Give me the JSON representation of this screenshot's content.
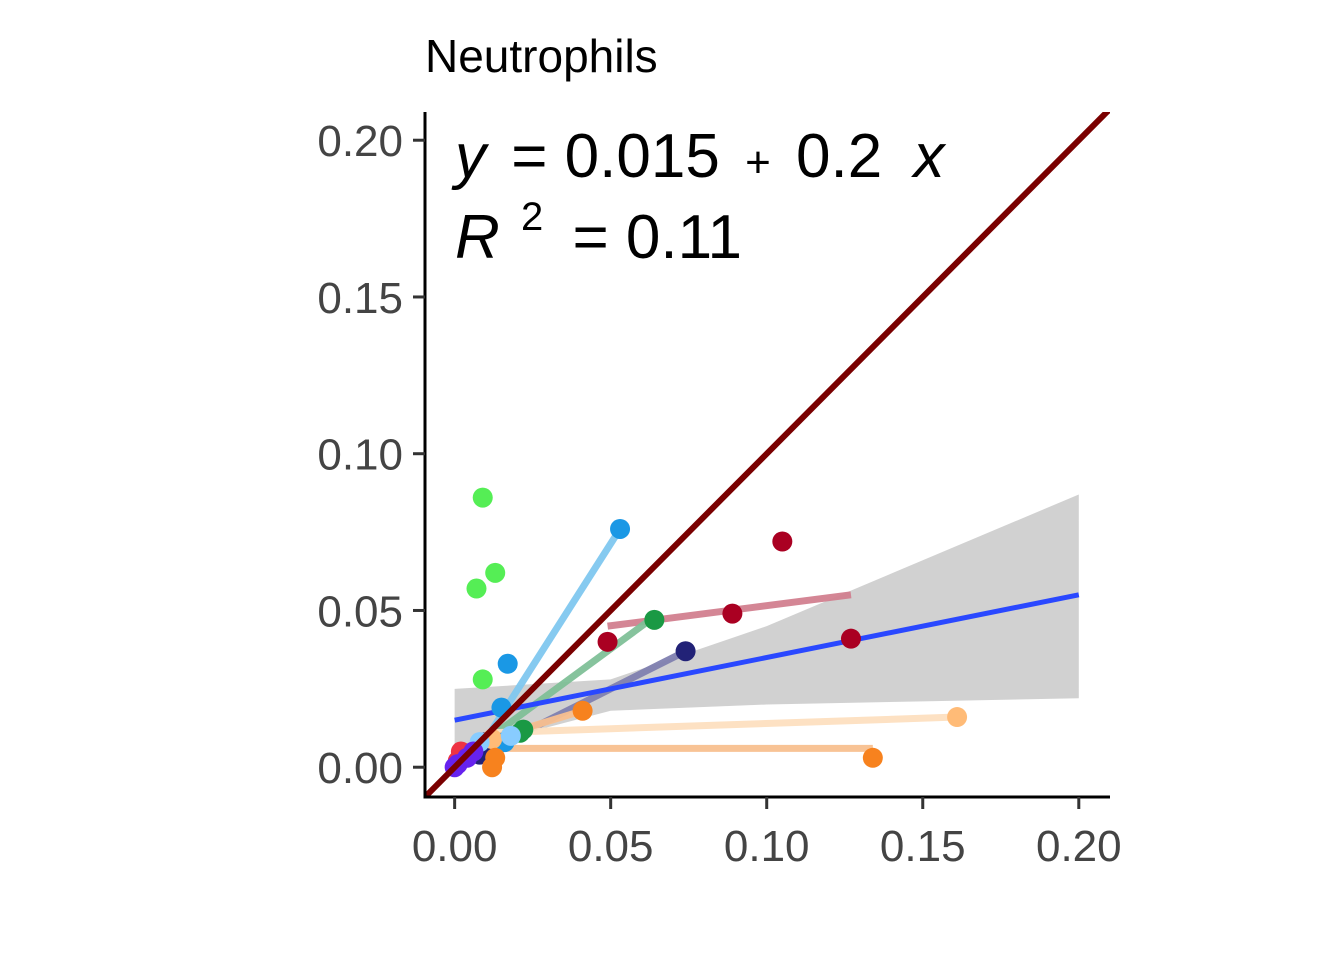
{
  "chart_data": {
    "type": "scatter",
    "title": "Neutrophils",
    "annotation": {
      "line1_y": "y",
      "line1_eq": "= 0.015",
      "line1_plus": "+",
      "line1_coef": "0.2",
      "line1_x": "x",
      "line2_r": "R",
      "line2_sup": "2",
      "line2_val": "= 0.11"
    },
    "xlim": [
      -0.0095,
      0.21
    ],
    "ylim": [
      -0.0095,
      0.209
    ],
    "x_ticks": [
      {
        "value": 0.0,
        "label": "0.00"
      },
      {
        "value": 0.05,
        "label": "0.05"
      },
      {
        "value": 0.1,
        "label": "0.10"
      },
      {
        "value": 0.15,
        "label": "0.15"
      },
      {
        "value": 0.2,
        "label": "0.20"
      }
    ],
    "y_ticks": [
      {
        "value": 0.0,
        "label": "0.00"
      },
      {
        "value": 0.05,
        "label": "0.05"
      },
      {
        "value": 0.1,
        "label": "0.10"
      },
      {
        "value": 0.15,
        "label": "0.15"
      },
      {
        "value": 0.2,
        "label": "0.20"
      }
    ],
    "identity_line": {
      "color": "#7a0000"
    },
    "regression": {
      "intercept": 0.015,
      "slope": 0.2,
      "x_range": [
        0.0,
        0.2
      ],
      "color": "#2a48ff",
      "ci_color": "#cccccc",
      "ci_lower": [
        [
          0.0,
          0.005
        ],
        [
          0.05,
          0.018
        ],
        [
          0.1,
          0.02
        ],
        [
          0.15,
          0.021
        ],
        [
          0.2,
          0.022
        ]
      ],
      "ci_upper": [
        [
          0.0,
          0.025
        ],
        [
          0.05,
          0.028
        ],
        [
          0.1,
          0.045
        ],
        [
          0.15,
          0.066
        ],
        [
          0.2,
          0.087
        ]
      ]
    },
    "group_lines": [
      {
        "color": "#d28090",
        "x": [
          0.049,
          0.127
        ],
        "y": [
          0.045,
          0.055
        ]
      },
      {
        "color": "#80c8f0",
        "x": [
          0.012,
          0.053
        ],
        "y": [
          0.012,
          0.076
        ]
      },
      {
        "color": "#80c098",
        "x": [
          0.012,
          0.064
        ],
        "y": [
          0.01,
          0.048
        ]
      },
      {
        "color": "#8080b0",
        "x": [
          0.01,
          0.074
        ],
        "y": [
          0.005,
          0.037
        ]
      },
      {
        "color": "#fde0c0",
        "x": [
          0.012,
          0.161
        ],
        "y": [
          0.011,
          0.016
        ]
      },
      {
        "color": "#f8c090",
        "x": [
          0.012,
          0.134
        ],
        "y": [
          0.006,
          0.006
        ]
      },
      {
        "color": "#f8c090",
        "x": [
          0.008,
          0.041
        ],
        "y": [
          0.008,
          0.018
        ]
      }
    ],
    "series": [
      {
        "color": "#aa0022",
        "x": [
          0.049,
          0.089,
          0.105,
          0.127
        ],
        "y": [
          0.04,
          0.049,
          0.072,
          0.041
        ]
      },
      {
        "color": "#55ee55",
        "x": [
          0.009,
          0.007,
          0.013,
          0.009
        ],
        "y": [
          0.086,
          0.057,
          0.062,
          0.028
        ]
      },
      {
        "color": "#1a98e5",
        "x": [
          0.053,
          0.017,
          0.015,
          0.016
        ],
        "y": [
          0.076,
          0.033,
          0.019,
          0.008
        ]
      },
      {
        "color": "#1a9944",
        "x": [
          0.064,
          0.022,
          0.021
        ],
        "y": [
          0.047,
          0.012,
          0.011
        ]
      },
      {
        "color": "#222277",
        "x": [
          0.074,
          0.009,
          0.008,
          0.01
        ],
        "y": [
          0.037,
          0.006,
          0.004,
          0.008
        ]
      },
      {
        "color": "#ffbb77",
        "x": [
          0.161,
          0.012
        ],
        "y": [
          0.016,
          0.009
        ]
      },
      {
        "color": "#f7821e",
        "x": [
          0.134,
          0.041,
          0.012,
          0.013
        ],
        "y": [
          0.003,
          0.018,
          0.0,
          0.003
        ]
      },
      {
        "color": "#88ccff",
        "x": [
          0.018,
          0.008
        ],
        "y": [
          0.01,
          0.008
        ]
      },
      {
        "color": "#ee3344",
        "x": [
          0.002,
          0.001
        ],
        "y": [
          0.005,
          0.002
        ]
      },
      {
        "color": "#6622ee",
        "x": [
          0.0,
          0.001,
          0.004,
          0.006
        ],
        "y": [
          0.0,
          0.001,
          0.003,
          0.005
        ]
      }
    ]
  }
}
